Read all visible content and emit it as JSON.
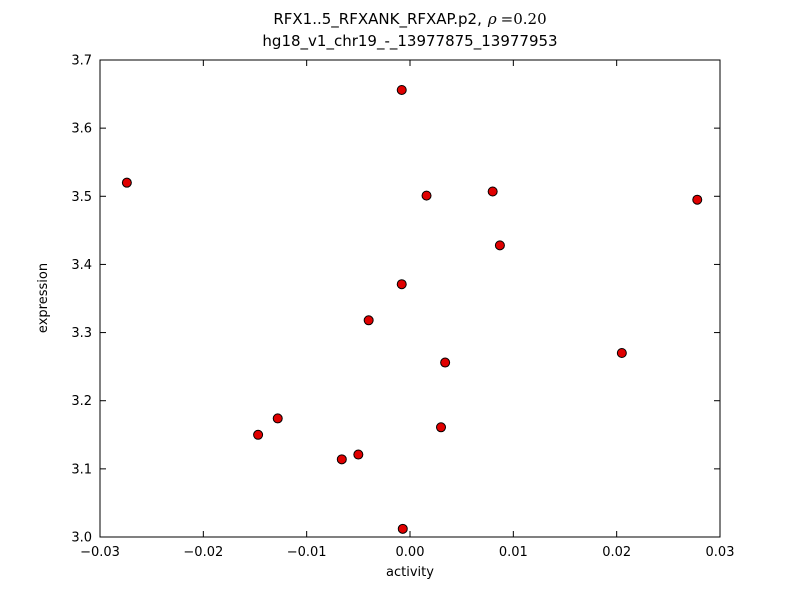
{
  "chart_data": {
    "type": "scatter",
    "title_prefix": "RFX1..5_RFXANK_RFXAP.p2,",
    "title_rho_symbol": "ρ",
    "title_rho_value": "=0.20",
    "title_line2": "hg18_v1_chr19_-_13977875_13977953",
    "xlabel": "activity",
    "ylabel": "expression",
    "xlim": [
      -0.03,
      0.03
    ],
    "ylim": [
      3.0,
      3.7
    ],
    "x_ticks": [
      -0.03,
      -0.02,
      -0.01,
      0,
      0.01,
      0.02,
      0.03
    ],
    "x_tick_labels": [
      "−0.03",
      "−0.02",
      "−0.01",
      "0.00",
      "0.01",
      "0.02",
      "0.03"
    ],
    "y_ticks": [
      3.0,
      3.1,
      3.2,
      3.3,
      3.4,
      3.5,
      3.6,
      3.7
    ],
    "y_tick_labels": [
      "3.0",
      "3.1",
      "3.2",
      "3.3",
      "3.4",
      "3.5",
      "3.6",
      "3.7"
    ],
    "grid": false,
    "marker": {
      "shape": "circle",
      "fill": "#e00000",
      "edge": "#000000",
      "radius": 4.5
    },
    "points": [
      [
        -0.0274,
        3.52
      ],
      [
        -0.0147,
        3.15
      ],
      [
        -0.0128,
        3.174
      ],
      [
        -0.0066,
        3.114
      ],
      [
        -0.005,
        3.121
      ],
      [
        -0.004,
        3.318
      ],
      [
        -0.0008,
        3.656
      ],
      [
        -0.0008,
        3.371
      ],
      [
        -0.0007,
        3.012
      ],
      [
        0.0016,
        3.501
      ],
      [
        0.003,
        3.161
      ],
      [
        0.0034,
        3.256
      ],
      [
        0.008,
        3.507
      ],
      [
        0.0087,
        3.428
      ],
      [
        0.0205,
        3.27
      ],
      [
        0.0278,
        3.495
      ]
    ]
  }
}
